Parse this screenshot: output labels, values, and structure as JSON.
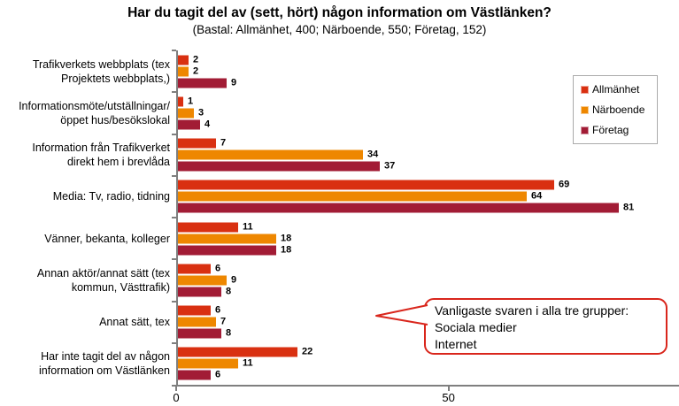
{
  "chart_data": {
    "type": "bar",
    "orientation": "horizontal",
    "title": "Har du tagit del av (sett, hört) någon information om Västlänken?",
    "subtitle": "(Bastal: Allmänhet, 400; Närboende, 550; Företag, 152)",
    "categories": [
      [
        "Trafikverkets webbplats (tex",
        "Projektets webbplats,)"
      ],
      [
        "Informationsmöte/utställningar/",
        "öppet hus/besökslokal"
      ],
      [
        "Information från Trafikverket",
        "direkt hem i brevlåda"
      ],
      [
        "Media: Tv, radio, tidning"
      ],
      [
        "Vänner, bekanta, kolleger"
      ],
      [
        "Annan aktör/annat sätt (tex",
        "kommun, Västtrafik)"
      ],
      [
        "Annat sätt, tex"
      ],
      [
        "Har inte tagit del av någon",
        "information om Västlänken"
      ]
    ],
    "series": [
      {
        "name": "Allmänhet",
        "color": "#D93011",
        "values": [
          2,
          1,
          7,
          69,
          11,
          6,
          6,
          22
        ]
      },
      {
        "name": "Närboende",
        "color": "#EE8700",
        "values": [
          2,
          3,
          34,
          64,
          18,
          9,
          7,
          11
        ]
      },
      {
        "name": "Företag",
        "color": "#A21C35",
        "values": [
          9,
          4,
          37,
          81,
          18,
          8,
          8,
          6
        ]
      }
    ],
    "xlim": [
      0,
      92
    ],
    "x_ticks": [
      0,
      50
    ],
    "grid": false,
    "legend_position": "upper-right",
    "annotation": {
      "lines": [
        "Vanligaste svaren i alla tre grupper:",
        "Sociala medier",
        "Internet"
      ],
      "border_color": "#D9261C"
    }
  }
}
